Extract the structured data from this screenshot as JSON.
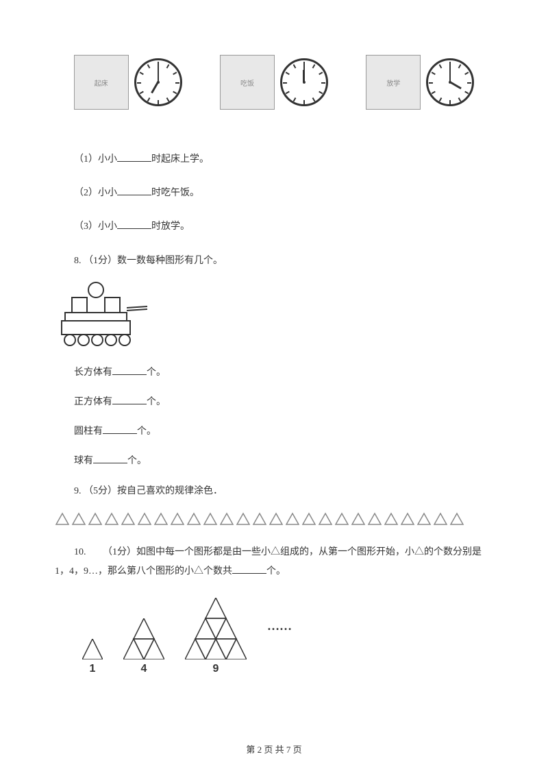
{
  "clocks": [
    {
      "hour_angle": 210,
      "minute_angle": 0,
      "scene": "起床"
    },
    {
      "hour_angle": 0,
      "minute_angle": 0,
      "scene": "吃饭"
    },
    {
      "hour_angle": 120,
      "minute_angle": 0,
      "scene": "放学"
    }
  ],
  "q7": {
    "sub1_prefix": "（1）小小",
    "sub1_suffix": "时起床上学。",
    "sub2_prefix": "（2）小小",
    "sub2_suffix": "时吃午饭。",
    "sub3_prefix": "（3）小小",
    "sub3_suffix": "时放学。"
  },
  "q8": {
    "header": "8. （1分）数一数每种图形有几个。",
    "line1_prefix": "长方体有",
    "line1_suffix": "个。",
    "line2_prefix": "正方体有",
    "line2_suffix": "个。",
    "line3_prefix": "圆柱有",
    "line3_suffix": "个。",
    "line4_prefix": "球有",
    "line4_suffix": "个。"
  },
  "q9": {
    "header": "9. （5分）按自己喜欢的规律涂色．",
    "triangle_count": 25,
    "triangle_stroke": "#888888"
  },
  "q10": {
    "text_part1": "10. 　　（1分）如图中每一个图形都是由一些小△组成的，从第一个图形开始，小△的个数分别是1，4，9…，那么第八个图形的小△个数共",
    "text_part2": "个。",
    "figures": [
      {
        "size": 1,
        "label": "1",
        "svg_size": 30
      },
      {
        "size": 2,
        "label": "4",
        "svg_size": 60
      },
      {
        "size": 3,
        "label": "9",
        "svg_size": 90
      }
    ],
    "dots": "……"
  },
  "footer": {
    "text": "第 2 页 共 7 页"
  },
  "colors": {
    "text": "#333333",
    "background": "#ffffff",
    "stroke": "#333333"
  }
}
